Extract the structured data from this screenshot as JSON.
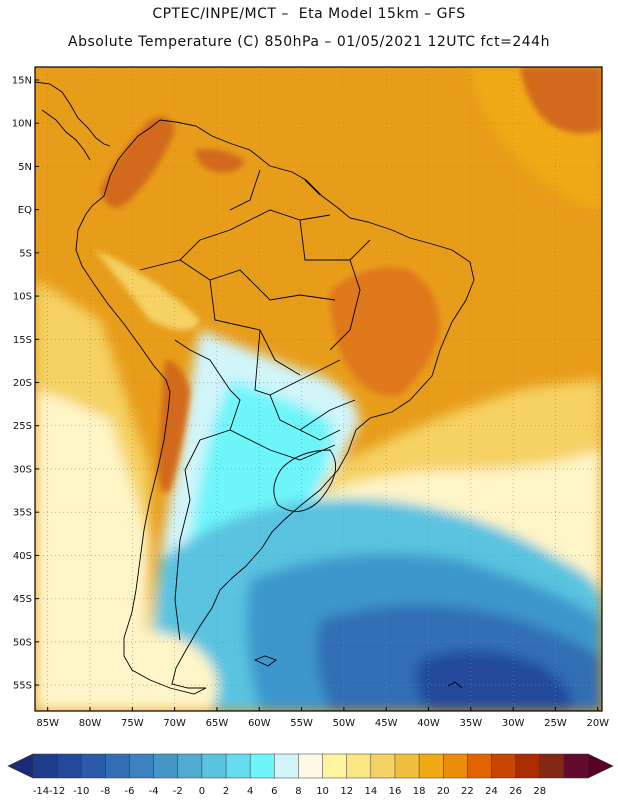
{
  "header": {
    "line1": "CPTEC/INPE/MCT –  Eta Model 15km – GFS",
    "line2": "Absolute Temperature (C) 850hPa – 01/05/2021 12UTC fct=244h"
  },
  "axes": {
    "lat_labels": [
      "15N",
      "10N",
      "5N",
      "EQ",
      "5S",
      "10S",
      "15S",
      "20S",
      "25S",
      "30S",
      "35S",
      "40S",
      "45S",
      "50S",
      "55S"
    ],
    "lat_values": [
      15,
      10,
      5,
      0,
      -5,
      -10,
      -15,
      -20,
      -25,
      -30,
      -35,
      -40,
      -45,
      -50,
      -55
    ],
    "lon_labels": [
      "85W",
      "80W",
      "75W",
      "70W",
      "65W",
      "60W",
      "55W",
      "50W",
      "45W",
      "40W",
      "35W",
      "30W",
      "25W",
      "20W"
    ],
    "lon_values": [
      -85,
      -80,
      -75,
      -70,
      -65,
      -60,
      -55,
      -50,
      -45,
      -40,
      -35,
      -30,
      -25,
      -20
    ],
    "lat_range": [
      -58,
      16.5
    ],
    "lon_range": [
      -86.5,
      -19.5
    ]
  },
  "colorbar": {
    "labels": [
      "-14",
      "-12",
      "-10",
      "-8",
      "-6",
      "-4",
      "-2",
      "0",
      "2",
      "4",
      "6",
      "8",
      "10",
      "12",
      "14",
      "16",
      "18",
      "20",
      "22",
      "24",
      "26",
      "28"
    ],
    "colors": [
      "#1e3c8c",
      "#23489c",
      "#2b5aa8",
      "#326eb4",
      "#3c82c0",
      "#4696c8",
      "#50aad2",
      "#5ac3e0",
      "#64dcf0",
      "#6ef5fa",
      "#d2f5fa",
      "#fff8e6",
      "#fff5a0",
      "#fae682",
      "#f5d264",
      "#f0be3c",
      "#f0aa14",
      "#eb8c0a",
      "#e16400",
      "#c84600",
      "#aa2d00",
      "#822814",
      "#640a2d"
    ],
    "arrow_left": "#1a2a78",
    "arrow_right": "#5a0028"
  },
  "palette": {
    "background": "#e89d1a",
    "land_hot": "#d2691e",
    "land_hot2": "#e0781a",
    "warm": "#f0aa14",
    "yellow": "#f5d264",
    "cream": "#fff5c8",
    "pale": "#d2f5fa",
    "cyan": "#6ef5fa",
    "light_blue": "#5ac3e0",
    "mid_blue": "#3c96cc",
    "deep_blue": "#326eb4",
    "darkest": "#23489c"
  }
}
